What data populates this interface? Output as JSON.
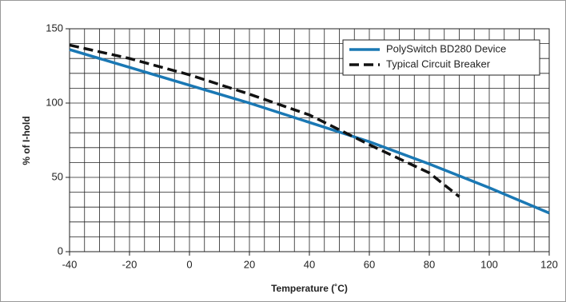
{
  "chart_data": {
    "type": "line",
    "x": [
      -40,
      -20,
      0,
      20,
      40,
      60,
      80,
      90,
      100,
      120
    ],
    "series": [
      {
        "name": "PolySwitch BD280 Device",
        "color": "#1a78b4",
        "dash": false,
        "values": [
          136,
          124,
          112,
          100,
          87,
          74,
          59,
          51,
          43,
          26
        ]
      },
      {
        "name": "Typical Circuit Breaker",
        "color": "#111111",
        "dash": true,
        "values": [
          139,
          130,
          119,
          106,
          92,
          72,
          53,
          37,
          null,
          null
        ]
      }
    ],
    "xlabel": "Temperature (˚C)",
    "ylabel": "% of I-hold",
    "xlim": [
      -40,
      120
    ],
    "ylim": [
      0,
      150
    ],
    "xticks": [
      -40,
      -20,
      0,
      20,
      40,
      60,
      80,
      100,
      120
    ],
    "yticks": [
      0,
      50,
      100,
      150
    ],
    "xgrid": [
      -40,
      -35,
      -30,
      -25,
      -20,
      -15,
      -10,
      -5,
      0,
      5,
      10,
      15,
      20,
      25,
      30,
      35,
      40,
      45,
      50,
      55,
      60,
      65,
      70,
      75,
      80,
      85,
      90,
      95,
      100,
      105,
      110,
      115,
      120
    ],
    "ygrid": [
      0,
      10,
      20,
      30,
      40,
      50,
      60,
      70,
      80,
      90,
      100,
      110,
      120,
      130,
      140,
      150
    ],
    "grid": true,
    "legend": "upper right"
  }
}
